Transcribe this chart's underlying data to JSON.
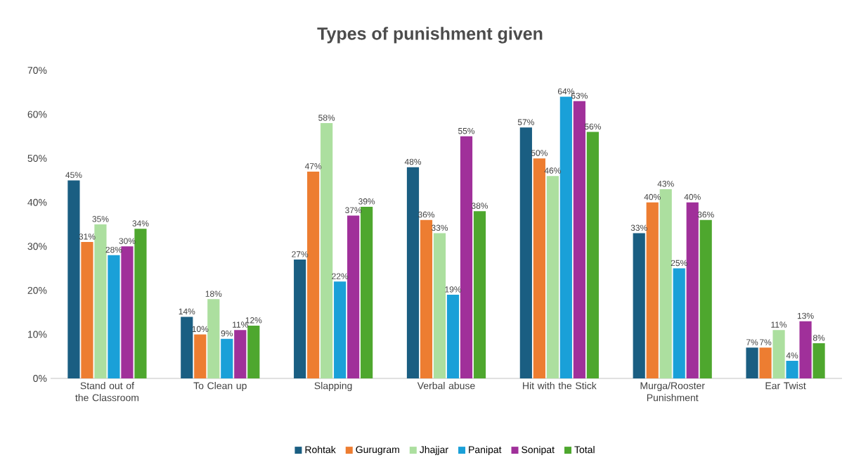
{
  "chart_data": {
    "type": "bar",
    "title": "Types of punishment given",
    "categories": [
      "Stand out of the Classroom",
      "To Clean up",
      "Slapping",
      "Verbal abuse",
      "Hit with the Stick",
      "Murga/Rooster Punishment",
      "Ear Twist"
    ],
    "series": [
      {
        "name": "Rohtak",
        "color": "#1a5e82",
        "values": [
          45,
          14,
          27,
          48,
          57,
          33,
          7
        ],
        "value_labels": [
          "45%",
          "14%",
          "27%",
          "48%",
          "57%",
          "33%",
          "7%"
        ]
      },
      {
        "name": "Gurugram",
        "color": "#ed7d31",
        "values": [
          31,
          10,
          47,
          36,
          50,
          40,
          7
        ],
        "value_labels": [
          "31%",
          "10%",
          "47%",
          "36%",
          "50%",
          "40%",
          "7%"
        ]
      },
      {
        "name": "Jhajjar",
        "color": "#acdf9f",
        "values": [
          35,
          18,
          58,
          33,
          46,
          43,
          11
        ],
        "value_labels": [
          "35%",
          "18%",
          "58%",
          "33%",
          "46%",
          "43%",
          "11%"
        ]
      },
      {
        "name": "Panipat",
        "color": "#1aa0d8",
        "values": [
          28,
          9,
          22,
          19,
          64,
          25,
          4
        ],
        "value_labels": [
          "28%",
          "9%",
          "22%",
          "19%",
          "64%",
          "25%",
          "4%"
        ]
      },
      {
        "name": "Sonipat",
        "color": "#a0309a",
        "values": [
          30,
          11,
          37,
          55,
          63,
          40,
          13
        ],
        "value_labels": [
          "30%",
          "11%",
          "37%",
          "55%",
          "63%",
          "40%",
          "13%"
        ]
      },
      {
        "name": "Total",
        "color": "#4ea72e",
        "values": [
          34,
          12,
          39,
          38,
          56,
          36,
          8
        ],
        "value_labels": [
          "34%",
          "12%",
          "39%",
          "38%",
          "56%",
          "36%",
          "8%"
        ]
      }
    ],
    "ylim": [
      0,
      70
    ],
    "yticks": [
      {
        "value": 0,
        "label": "0%"
      },
      {
        "value": 10,
        "label": "10%"
      },
      {
        "value": 20,
        "label": "20%"
      },
      {
        "value": 30,
        "label": "30%"
      },
      {
        "value": 40,
        "label": "40%"
      },
      {
        "value": 50,
        "label": "50%"
      },
      {
        "value": 60,
        "label": "60%"
      },
      {
        "value": 70,
        "label": "70%"
      }
    ],
    "legend": "bottom"
  }
}
